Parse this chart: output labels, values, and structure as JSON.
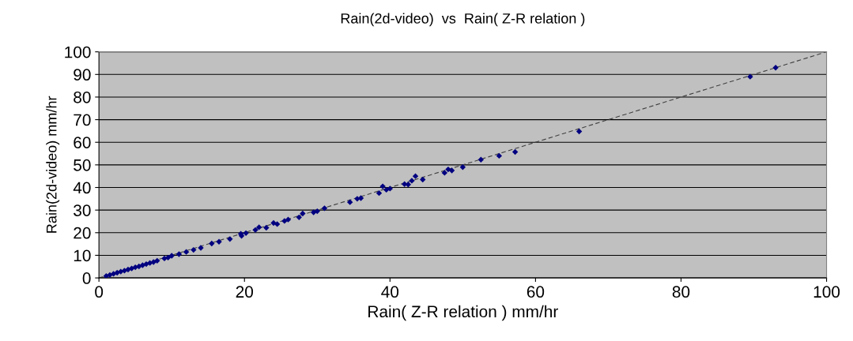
{
  "chart_data": {
    "type": "scatter",
    "title": "Rain(2d-video)  vs  Rain( Z-R relation )",
    "xlabel": "Rain( Z-R relation ) mm/hr",
    "ylabel": "Rain(2d-video) mm/hr",
    "xlim": [
      0,
      100
    ],
    "ylim": [
      0,
      100
    ],
    "xticks": [
      0,
      20,
      40,
      60,
      80,
      100
    ],
    "yticks": [
      0,
      10,
      20,
      30,
      40,
      50,
      60,
      70,
      80,
      90,
      100
    ],
    "grid": "y",
    "marker": "diamond",
    "legend": false,
    "series": [
      {
        "color": "#000080",
        "x": [
          1,
          1.5,
          2,
          2.5,
          3,
          3.5,
          4,
          4.5,
          5,
          5.5,
          6,
          6.5,
          7,
          7.5,
          8,
          9,
          9.5,
          10,
          11,
          12,
          13,
          14,
          15.5,
          16.5,
          18,
          19.5,
          19.6,
          20.2,
          21.5,
          22,
          23,
          24,
          24.5,
          25.5,
          26,
          27.5,
          28,
          29.5,
          30,
          31,
          34.5,
          35.5,
          36,
          38.5,
          39,
          39.5,
          40,
          42,
          42.5,
          43,
          43.5,
          44.5,
          47.5,
          48,
          48.5,
          50,
          52.5,
          55,
          57.2,
          66,
          89.5,
          93
        ],
        "values": [
          0.8,
          1.3,
          1.8,
          2.3,
          2.8,
          3.2,
          3.7,
          4.2,
          4.7,
          5.1,
          5.6,
          6.1,
          6.6,
          7,
          7.6,
          8.6,
          9,
          9.8,
          10.5,
          11.5,
          12.4,
          13.3,
          15.2,
          16,
          17.2,
          19.5,
          18.6,
          19.8,
          21.2,
          22.4,
          22.2,
          24.3,
          23.8,
          25.2,
          25.8,
          26.8,
          28.5,
          29,
          29.5,
          30.8,
          33.5,
          35,
          35.3,
          37.5,
          40.5,
          39,
          39.5,
          41.5,
          41.3,
          43,
          45,
          43.5,
          46.5,
          48,
          47.5,
          49,
          52.3,
          54,
          55.7,
          64.8,
          89,
          93
        ]
      },
      {
        "type": "line",
        "color": "#404040",
        "line_style": "dashed",
        "marker": "none",
        "x": [
          0,
          100
        ],
        "values": [
          0,
          100
        ]
      }
    ]
  }
}
